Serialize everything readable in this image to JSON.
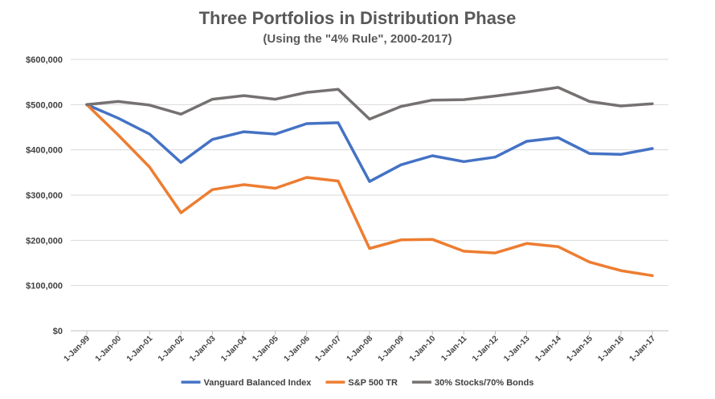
{
  "chart_data": {
    "type": "line",
    "title": "Three Portfolios in Distribution Phase",
    "subtitle": "(Using the \"4% Rule\", 2000-2017)",
    "xlabel": "",
    "ylabel": "",
    "categories": [
      "1-Jan-99",
      "1-Jan-00",
      "1-Jan-01",
      "1-Jan-02",
      "1-Jan-03",
      "1-Jan-04",
      "1-Jan-05",
      "1-Jan-06",
      "1-Jan-07",
      "1-Jan-08",
      "1-Jan-09",
      "1-Jan-10",
      "1-Jan-11",
      "1-Jan-12",
      "1-Jan-13",
      "1-Jan-14",
      "1-Jan-15",
      "1-Jan-16",
      "1-Jan-17"
    ],
    "ylim": [
      0,
      600000
    ],
    "yticks": [
      0,
      100000,
      200000,
      300000,
      400000,
      500000,
      600000
    ],
    "ytick_labels": [
      "$0",
      "$100,000",
      "$200,000",
      "$300,000",
      "$400,000",
      "$500,000",
      "$600,000"
    ],
    "grid": true,
    "legend_position": "bottom",
    "series": [
      {
        "name": "Vanguard Balanced Index",
        "color": "#4472C4",
        "values": [
          500000,
          470000,
          435000,
          372000,
          423000,
          440000,
          435000,
          458000,
          460000,
          330000,
          367000,
          387000,
          374000,
          384000,
          419000,
          427000,
          392000,
          390000,
          403000
        ]
      },
      {
        "name": "S&P 500 TR",
        "color": "#ED7D31",
        "values": [
          500000,
          433000,
          362000,
          261000,
          312000,
          323000,
          315000,
          339000,
          331000,
          182000,
          201000,
          202000,
          176000,
          172000,
          193000,
          186000,
          152000,
          133000,
          122000
        ]
      },
      {
        "name": "30% Stocks/70% Bonds",
        "color": "#767171",
        "values": [
          500000,
          507000,
          499000,
          479000,
          512000,
          520000,
          512000,
          527000,
          534000,
          468000,
          496000,
          510000,
          511000,
          519000,
          528000,
          538000,
          507000,
          497000,
          502000
        ]
      }
    ]
  }
}
